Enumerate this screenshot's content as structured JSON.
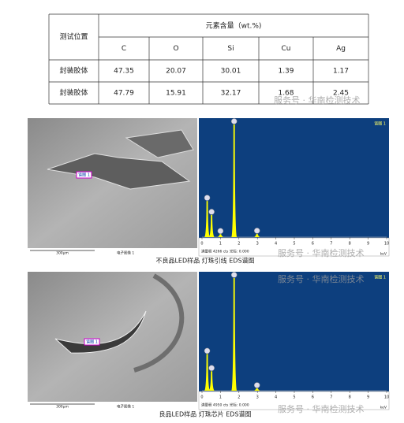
{
  "table": {
    "header": {
      "position": "测试位置",
      "content": "元素含量（wt.%)",
      "elements": [
        "C",
        "O",
        "Si",
        "Cu",
        "Ag"
      ]
    },
    "rows": [
      [
        "封装胶体",
        47.35,
        20.07,
        30.01,
        1.39,
        1.17
      ],
      [
        "封装胶体",
        47.79,
        15.91,
        32.17,
        1.68,
        2.45
      ]
    ]
  },
  "watermarks": [
    "服务号 · 华南检测技术",
    "服务号 · 华南检测技术",
    "服务号 · 华南检测技术",
    "服务号 · 华南检测技术"
  ],
  "figures": [
    {
      "scale_bar": "300μm",
      "image_label": "电子图像 1",
      "spectrum_marker": "谱图 1",
      "caption": "不良品LED样品 灯珠引线 EDS谱图"
    },
    {
      "scale_bar": "300μm",
      "image_label": "电子图像 1",
      "spectrum_marker": "谱图 1",
      "caption": "良品LED样品 灯珠芯片 EDS谱图"
    }
  ],
  "chart_data": [
    {
      "type": "spectrum",
      "title": "谱图 1",
      "full_scale_label": "满量程 4266 cts 光标: 0.000",
      "xlabel": "keV",
      "x": [
        0.28,
        0.52,
        1.0,
        1.74,
        2.98
      ],
      "values": [
        1340,
        820,
        110,
        4180,
        120
      ],
      "color": "#ffff00",
      "xlim": [
        0,
        10
      ],
      "xticks": [
        0,
        1,
        2,
        3,
        4,
        5,
        6,
        7,
        8,
        9,
        10
      ],
      "ylim": [
        0,
        4266
      ]
    },
    {
      "type": "spectrum",
      "title": "谱图 1",
      "full_scale_label": "满量程 4950 cts 光标: 0.000",
      "xlabel": "keV",
      "x": [
        0.28,
        0.52,
        1.74,
        2.98
      ],
      "values": [
        1580,
        840,
        4850,
        100
      ],
      "color": "#ffff00",
      "xlim": [
        0,
        10
      ],
      "xticks": [
        0,
        1,
        2,
        3,
        4,
        5,
        6,
        7,
        8,
        9,
        10
      ],
      "ylim": [
        0,
        4950
      ]
    }
  ]
}
